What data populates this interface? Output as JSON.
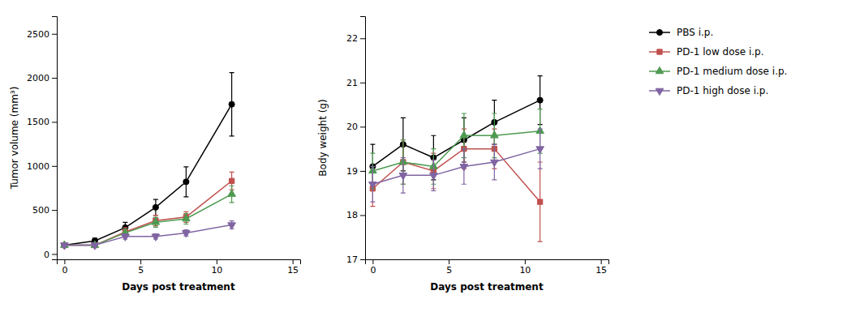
{
  "chart_data": [
    {
      "type": "line",
      "xlabel": "Days post treatment",
      "ylabel": "Tumor volume (mm³)",
      "x": [
        0,
        2,
        4,
        6,
        8,
        11
      ],
      "xlim": [
        -0.5,
        15.5
      ],
      "xticks": [
        0,
        5,
        10,
        15
      ],
      "ylim": [
        -60,
        2700
      ],
      "yticks": [
        0,
        500,
        1000,
        1500,
        2000,
        2500
      ],
      "legend": "right",
      "series": [
        {
          "name": "PBS i.p.",
          "color": "#000000",
          "marker": "circle",
          "values": [
            100,
            150,
            300,
            530,
            820,
            1700
          ],
          "errors": [
            20,
            30,
            60,
            90,
            170,
            360
          ]
        },
        {
          "name": "PD-1 low dose i.p.",
          "color": "#c0504d",
          "marker": "square",
          "values": [
            100,
            100,
            250,
            380,
            420,
            830
          ],
          "errors": [
            15,
            20,
            50,
            60,
            60,
            100
          ]
        },
        {
          "name": "PD-1 medium dose i.p.",
          "color": "#4e9a51",
          "marker": "triangle-up",
          "values": [
            100,
            100,
            240,
            360,
            400,
            680
          ],
          "errors": [
            15,
            20,
            45,
            55,
            60,
            95
          ]
        },
        {
          "name": "PD-1 high dose i.p.",
          "color": "#8064a2",
          "marker": "triangle-down",
          "values": [
            100,
            100,
            200,
            200,
            240,
            330
          ],
          "errors": [
            15,
            15,
            30,
            30,
            35,
            45
          ]
        }
      ]
    },
    {
      "type": "line",
      "xlabel": "Days post treatment",
      "ylabel": "Body weight (g)",
      "x": [
        0,
        2,
        4,
        6,
        8,
        11
      ],
      "xlim": [
        -0.5,
        15.5
      ],
      "xticks": [
        0,
        5,
        10,
        15
      ],
      "ylim": [
        17,
        22.5
      ],
      "yticks": [
        17,
        18,
        19,
        20,
        21,
        22
      ],
      "series": [
        {
          "color": "#000000",
          "marker": "circle",
          "values": [
            19.1,
            19.6,
            19.3,
            19.7,
            20.1,
            20.6
          ],
          "errors": [
            0.5,
            0.6,
            0.5,
            0.5,
            0.5,
            0.55
          ]
        },
        {
          "color": "#c0504d",
          "marker": "square",
          "values": [
            18.6,
            19.2,
            19.0,
            19.5,
            19.5,
            18.3
          ],
          "errors": [
            0.4,
            0.5,
            0.4,
            0.45,
            0.45,
            0.9
          ]
        },
        {
          "color": "#4e9a51",
          "marker": "triangle-up",
          "values": [
            19.0,
            19.2,
            19.1,
            19.8,
            19.8,
            19.9
          ],
          "errors": [
            0.4,
            0.5,
            0.4,
            0.5,
            0.5,
            0.5
          ]
        },
        {
          "color": "#8064a2",
          "marker": "triangle-down",
          "values": [
            18.7,
            18.9,
            18.9,
            19.1,
            19.2,
            19.5
          ],
          "errors": [
            0.4,
            0.4,
            0.35,
            0.4,
            0.4,
            0.45
          ]
        }
      ]
    }
  ]
}
